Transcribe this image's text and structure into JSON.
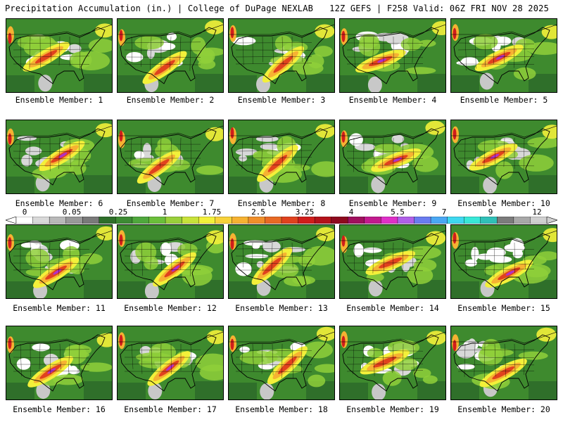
{
  "header": {
    "title": "Precipitation Accumulation (in.) | College of DuPage NEXLAB",
    "run_info": "12Z GEFS | F258 Valid: 06Z FRI NOV 28 2025"
  },
  "panels": [
    {
      "label": "Ensemble Member: 1"
    },
    {
      "label": "Ensemble Member: 2"
    },
    {
      "label": "Ensemble Member: 3"
    },
    {
      "label": "Ensemble Member: 4"
    },
    {
      "label": "Ensemble Member: 5"
    },
    {
      "label": "Ensemble Member: 6"
    },
    {
      "label": "Ensemble Member: 7"
    },
    {
      "label": "Ensemble Member: 8"
    },
    {
      "label": "Ensemble Member: 9"
    },
    {
      "label": "Ensemble Member: 10"
    },
    {
      "label": "Ensemble Member: 11"
    },
    {
      "label": "Ensemble Member: 12"
    },
    {
      "label": "Ensemble Member: 13"
    },
    {
      "label": "Ensemble Member: 14"
    },
    {
      "label": "Ensemble Member: 15"
    },
    {
      "label": "Ensemble Member: 16"
    },
    {
      "label": "Ensemble Member: 17"
    },
    {
      "label": "Ensemble Member: 18"
    },
    {
      "label": "Ensemble Member: 19"
    },
    {
      "label": "Ensemble Member: 20"
    }
  ],
  "colorbar": {
    "tick_labels": [
      "0",
      "0.05",
      "0.25",
      "1",
      "1.75",
      "2.5",
      "3.25",
      "4",
      "5.5",
      "7",
      "9",
      "12"
    ],
    "colors": [
      "#ffffff",
      "#d9d9d9",
      "#b9b9b9",
      "#999999",
      "#7a7a7a",
      "#2f6f2a",
      "#3d8b34",
      "#4fa83d",
      "#6bbf3a",
      "#9ad03a",
      "#c8e23a",
      "#f3f03a",
      "#f8d23a",
      "#f6b232",
      "#f08f2a",
      "#e86a24",
      "#e0421e",
      "#d01d1b",
      "#b4121a",
      "#8e0a1e",
      "#a0105e",
      "#c21a8e",
      "#df30c8",
      "#b060e8",
      "#6a7cf0",
      "#4aa8f4",
      "#3ed8f0",
      "#38e8d8",
      "#30c0b8",
      "#7c7c7c",
      "#a8a8a8",
      "#d0d0d0"
    ]
  }
}
